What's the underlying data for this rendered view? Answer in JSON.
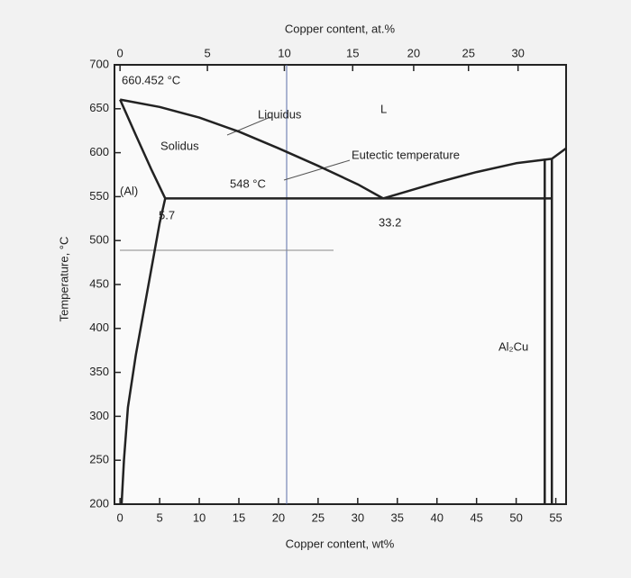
{
  "chart_data": {
    "type": "line",
    "xlabel": "Copper content, wt%",
    "x2label": "Copper content, at.%",
    "ylabel": "Temperature, °C",
    "xlim": [
      -0.7,
      56.3
    ],
    "ylim": [
      200,
      700
    ],
    "xticks": [
      0,
      5,
      10,
      15,
      20,
      25,
      30,
      35,
      40,
      45,
      50,
      55
    ],
    "x2ticks": [
      0,
      5,
      10,
      15,
      20,
      25,
      30
    ],
    "yticks": [
      200,
      250,
      300,
      350,
      400,
      450,
      500,
      550,
      600,
      650,
      700
    ],
    "annotations": [
      "660.452 °C",
      "Liquidus",
      "L",
      "Solidus",
      "Eutectic temperature",
      "548 °C",
      "(Al)",
      "5.7",
      "33.2",
      "Al₂Cu"
    ],
    "series": [
      {
        "color": "#222222",
        "x": [
          0,
          5,
          10,
          15,
          20,
          25,
          30,
          33.2
        ],
        "values": [
          660.452,
          652,
          640,
          624,
          605,
          585,
          564,
          548
        ]
      },
      {
        "color": "#222222",
        "x": [
          33.2,
          40,
          45,
          50,
          54.5,
          56.3
        ],
        "values": [
          548,
          566,
          578,
          588,
          593,
          605
        ]
      },
      {
        "color": "#222222",
        "x": [
          0,
          2,
          4,
          5.7
        ],
        "values": [
          660.452,
          620,
          580,
          548
        ]
      },
      {
        "color": "#222222",
        "x": [
          5.7,
          5,
          4,
          3,
          2,
          1,
          0.5,
          0.2
        ],
        "values": [
          548,
          520,
          470,
          420,
          370,
          310,
          250,
          200
        ]
      },
      {
        "color": "#222222",
        "x": [
          5.7,
          54.5
        ],
        "values": [
          548,
          548
        ]
      },
      {
        "color": "#222222",
        "x": [
          53.6,
          53.6
        ],
        "values": [
          200,
          593
        ]
      },
      {
        "color": "#222222",
        "x": [
          54.5,
          54.5
        ],
        "values": [
          200,
          593
        ]
      }
    ]
  }
}
